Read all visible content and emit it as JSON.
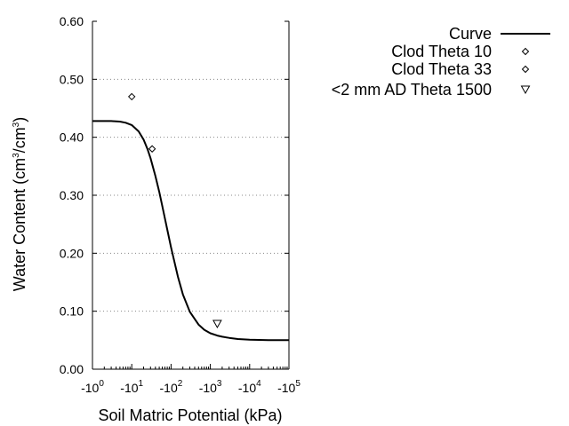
{
  "chart_data": {
    "type": "scatter",
    "xlabel": "Soil Matric Potential (kPa)",
    "ylabel": {
      "prefix": "Water Content (cm",
      "sup1": "3",
      "mid": "/cm",
      "sup2": "3",
      "suffix": ")"
    },
    "x_scale": "log",
    "xlim": [
      1,
      100000
    ],
    "ylim": [
      0.0,
      0.6
    ],
    "grid": "horizontal dotted",
    "legend_position": "top-right",
    "x_ticks": [
      {
        "base": "-10",
        "exp": "0"
      },
      {
        "base": "-10",
        "exp": "1"
      },
      {
        "base": "-10",
        "exp": "2"
      },
      {
        "base": "-10",
        "exp": "3"
      },
      {
        "base": "-10",
        "exp": "4"
      },
      {
        "base": "-10",
        "exp": "5"
      }
    ],
    "y_ticks": [
      "0.00",
      "0.10",
      "0.20",
      "0.30",
      "0.40",
      "0.50",
      "0.60"
    ],
    "y_tick_values": [
      0.0,
      0.1,
      0.2,
      0.3,
      0.4,
      0.5,
      0.6
    ],
    "series": [
      {
        "name": "Curve",
        "kind": "line",
        "x": [
          1,
          2,
          3,
          5,
          7,
          10,
          15,
          20,
          25,
          30,
          40,
          50,
          60,
          80,
          100,
          150,
          200,
          300,
          500,
          700,
          1000,
          1500,
          2000,
          3000,
          5000,
          10000,
          30000,
          100000
        ],
        "y": [
          0.428,
          0.428,
          0.428,
          0.427,
          0.425,
          0.421,
          0.41,
          0.396,
          0.38,
          0.364,
          0.333,
          0.306,
          0.281,
          0.241,
          0.21,
          0.159,
          0.129,
          0.099,
          0.077,
          0.068,
          0.062,
          0.058,
          0.056,
          0.054,
          0.052,
          0.051,
          0.05,
          0.05
        ]
      },
      {
        "name": "Clod Theta 10",
        "kind": "diamond",
        "x": [
          10
        ],
        "y": [
          0.47
        ]
      },
      {
        "name": "Clod Theta 33",
        "kind": "diamond",
        "x": [
          33
        ],
        "y": [
          0.38
        ]
      },
      {
        "name": "<2 mm AD Theta 1500",
        "kind": "triangle-down",
        "x": [
          1500
        ],
        "y": [
          0.078
        ]
      }
    ]
  }
}
